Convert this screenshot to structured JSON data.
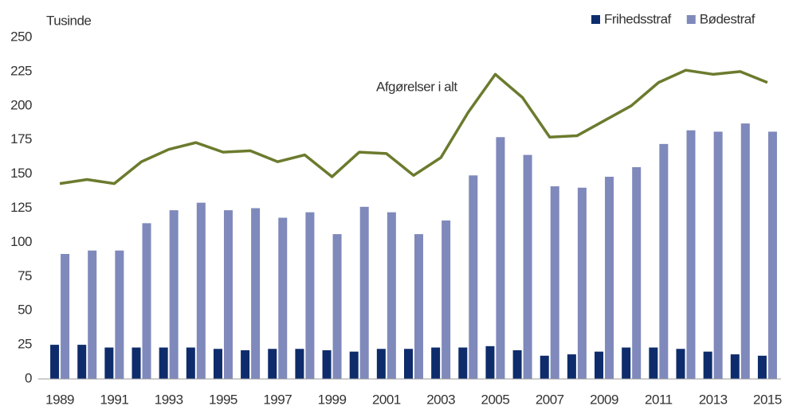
{
  "chart_data": {
    "type": "bar",
    "title": "Tusinde",
    "categories": [
      "1989",
      null,
      "1991",
      null,
      "1993",
      null,
      "1995",
      null,
      "1997",
      null,
      "1999",
      null,
      "2001",
      null,
      "2003",
      null,
      "2005",
      null,
      "2007",
      null,
      "2009",
      null,
      "2011",
      null,
      "2013",
      null,
      "2015"
    ],
    "series": [
      {
        "name": "Frihedsstraf",
        "color": "#0e2c6b",
        "values": [
          25,
          25,
          23,
          23,
          23,
          23,
          22,
          21,
          22,
          22,
          21,
          20,
          22,
          22,
          23,
          23,
          24,
          21,
          17,
          18,
          20,
          23,
          23,
          22,
          20,
          18,
          17
        ]
      },
      {
        "name": "Bødestraf",
        "color": "#7f89bb",
        "values": [
          91.5,
          94,
          94,
          114,
          123.5,
          129,
          123.5,
          125,
          118,
          122,
          106,
          126,
          122,
          106,
          116,
          149,
          177,
          164,
          141,
          140,
          148,
          155,
          172,
          182,
          181,
          187,
          181
        ]
      },
      {
        "name": "Afgørelser i alt",
        "type": "line",
        "color": "#6b7b2e",
        "values": [
          143,
          146,
          143,
          159,
          168,
          173,
          166,
          167,
          159,
          164,
          148,
          166,
          165,
          149,
          162,
          195,
          223,
          206,
          177,
          178,
          189,
          200,
          217,
          226,
          223,
          225,
          217
        ]
      }
    ],
    "ylim": [
      0,
      250
    ],
    "yticks": [
      0,
      25,
      50,
      75,
      100,
      125,
      150,
      175,
      200,
      225,
      250
    ],
    "grid": false,
    "legend": "top-right"
  }
}
